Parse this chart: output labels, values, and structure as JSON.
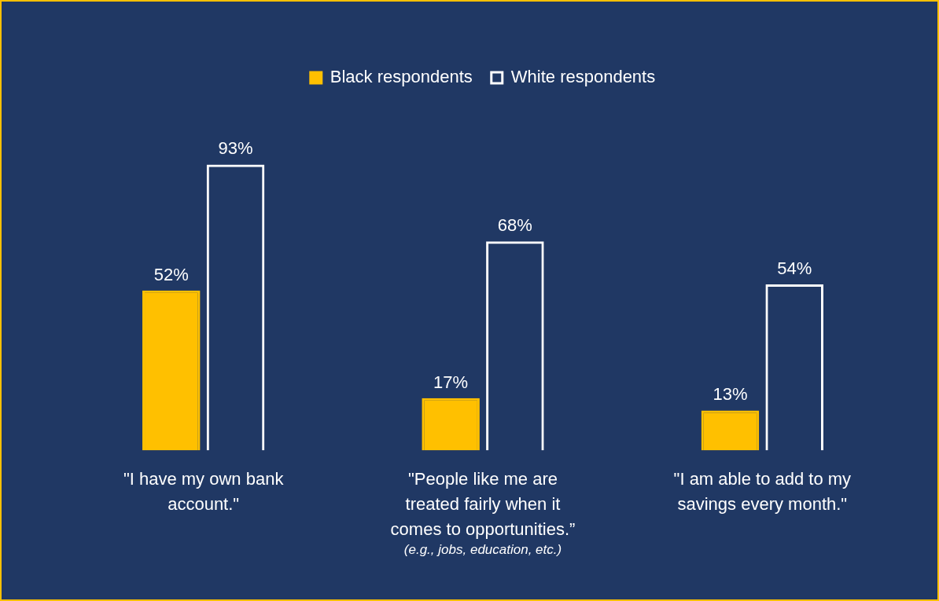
{
  "chart_data": {
    "type": "bar",
    "categories": [
      "\"I have my own bank account.\"",
      "\"People like me are treated fairly when it comes to opportunities.”",
      "\"I am able to add to my savings every month.\""
    ],
    "series": [
      {
        "name": "Black respondents",
        "color": "#ffc000",
        "values": [
          52,
          17,
          13
        ],
        "value_labels": [
          "52%",
          "17%",
          "13%"
        ]
      },
      {
        "name": "White respondents",
        "color": "#ffffff",
        "values": [
          93,
          68,
          54
        ],
        "value_labels": [
          "93%",
          "68%",
          "54%"
        ]
      }
    ],
    "tick_labels": "x",
    "legend": "top",
    "annotations": [
      "(e.g., jobs, education, etc.)"
    ]
  }
}
